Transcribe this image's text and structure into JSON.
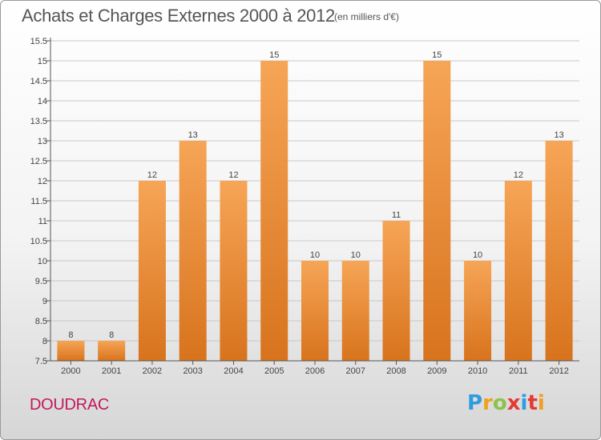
{
  "header": {
    "title": "Achats et Charges Externes 2000 à 2012",
    "unit": "(en milliers d'€)"
  },
  "footer": {
    "commune": "DOUDRAC",
    "brand_letters": [
      "P",
      "r",
      "o",
      "x",
      "i",
      "t",
      "i"
    ],
    "brand_colors": [
      "#2f9be0",
      "#f0a020",
      "#8bc34a",
      "#e53935",
      "#2f9be0",
      "#e53935",
      "#f0a020"
    ]
  },
  "colors": {
    "bar_top": "#f6a556",
    "bar_bottom": "#d8731d",
    "grid": "#c8c8c8",
    "axis": "#555555"
  },
  "chart_data": {
    "type": "bar",
    "categories": [
      "2000",
      "2001",
      "2002",
      "2003",
      "2004",
      "2005",
      "2006",
      "2007",
      "2008",
      "2009",
      "2010",
      "2011",
      "2012"
    ],
    "values": [
      8,
      8,
      12,
      13,
      12,
      15,
      10,
      10,
      11,
      15,
      10,
      12,
      13
    ],
    "value_labels": [
      "8",
      "8",
      "12",
      "13",
      "12",
      "15",
      "10",
      "10",
      "11",
      "15",
      "10",
      "12",
      "13"
    ],
    "yticks": [
      7.5,
      8,
      8.5,
      9,
      9.5,
      10,
      10.5,
      11,
      11.5,
      12,
      12.5,
      13,
      13.5,
      14,
      14.5,
      15,
      15.5
    ],
    "ylim": [
      7.5,
      15.5
    ],
    "grid": true,
    "title": "Achats et Charges Externes 2000 à 2012",
    "xlabel": "",
    "ylabel": ""
  }
}
